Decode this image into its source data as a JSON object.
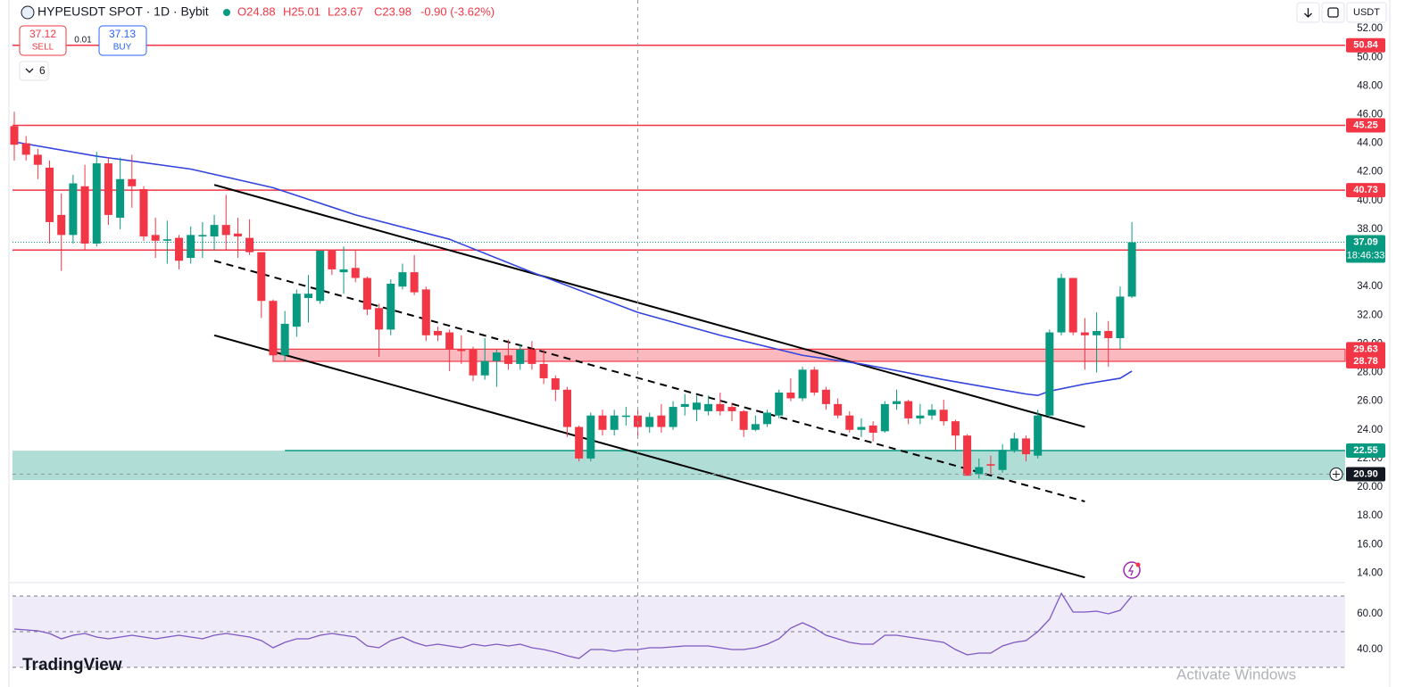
{
  "header": {
    "symbol": "HYPEUSDT SPOT · 1D · Bybit",
    "open": "O24.88",
    "high": "H25.01",
    "low": "L23.67",
    "close": "C23.98",
    "change": "-0.90 (-3.62%)"
  },
  "trade": {
    "sell_price": "37.12",
    "sell": "SELL",
    "spread": "0.01",
    "buy_price": "37.13",
    "buy": "BUY"
  },
  "indicators_count": "6",
  "toolbar": {
    "currency": "USDT"
  },
  "branding": "TradingView",
  "watermark": "Activate Windows",
  "chart_data": [
    {
      "type": "candlestick",
      "open": [
        45.2,
        44,
        43.2,
        42.3,
        39,
        37.6,
        41,
        37,
        42.6,
        38.8,
        41.5,
        40.8,
        37.6,
        37.2,
        37.4,
        36,
        37.5,
        37.5,
        38.3,
        37.7,
        37.4,
        36.4,
        33,
        29.2,
        31.2,
        33.2,
        33,
        36.5,
        35,
        35.3,
        34.6,
        32.5,
        31,
        34,
        35,
        33.8,
        30.9,
        30.8,
        29.6,
        29.6,
        27.8,
        28.8,
        29.2,
        28.6,
        29.6,
        28.6,
        27.6,
        26.8,
        24.2,
        22,
        25,
        24,
        24.9,
        25,
        24.2,
        25,
        24.2,
        25.6,
        25.4,
        25.3,
        25.8,
        25.6,
        25.3,
        24,
        24.4,
        25,
        26.6,
        26.2,
        28.2,
        26.8,
        25.8,
        25,
        24,
        24.3,
        23.9,
        25.8,
        26,
        24.8,
        25,
        25.4,
        24.6,
        23.6,
        20.9,
        21.6,
        21.2,
        22.6,
        23.4,
        22.2,
        25,
        30.8,
        34.6,
        30.8,
        30.6,
        30.9,
        30.4,
        33.3
      ],
      "high": [
        46.2,
        44.5,
        43.6,
        42.8,
        40.5,
        41.8,
        42.5,
        43.4,
        43,
        43,
        43.2,
        41,
        38.8,
        38.6,
        37.6,
        38.2,
        38.5,
        39,
        40.4,
        38.8,
        38.7,
        36.4,
        33.1,
        32.3,
        33.8,
        34.8,
        36.5,
        36.6,
        36.8,
        36.6,
        34.7,
        32.8,
        34.5,
        35.6,
        36.2,
        34,
        31.2,
        31,
        30.6,
        29.8,
        30.4,
        29.6,
        30.3,
        30,
        30.2,
        29.6,
        27.8,
        27,
        24.3,
        25.2,
        25.4,
        25.4,
        25.6,
        25.4,
        25.2,
        25.8,
        26,
        26.5,
        26.4,
        26.4,
        26.6,
        25.9,
        25.4,
        25,
        25.4,
        26.8,
        27.6,
        28.4,
        28.4,
        27,
        26.2,
        25.3,
        24.8,
        24.6,
        26,
        26.8,
        26.1,
        25.8,
        25.8,
        26.1,
        24.7,
        23.7,
        22,
        22.2,
        23,
        23.8,
        23.6,
        25.4,
        31,
        34.9,
        34.6,
        31.8,
        32.2,
        31.6,
        34,
        38.5
      ],
      "low": [
        42.8,
        42.8,
        41.5,
        37,
        35.1,
        37,
        36.5,
        36.8,
        38.3,
        38,
        39.5,
        37.2,
        36,
        35.6,
        35.2,
        35.6,
        36,
        36.5,
        36.5,
        36,
        36.2,
        31.8,
        28.8,
        28.8,
        30.5,
        31.5,
        32.8,
        34.8,
        33.5,
        34.3,
        32,
        29.1,
        30.6,
        33.8,
        33.4,
        30.2,
        30.2,
        28.1,
        28.6,
        27.4,
        27.5,
        27,
        28.2,
        28.2,
        28.2,
        27.2,
        26,
        23.5,
        21.8,
        21.8,
        23.6,
        23.6,
        24.3,
        23.4,
        23.8,
        23.8,
        24,
        25,
        24.6,
        25,
        25,
        24.6,
        23.5,
        23.9,
        24.2,
        24.8,
        26,
        26,
        26.4,
        25.4,
        24.8,
        23.8,
        23.5,
        23.2,
        23.8,
        25.4,
        24.4,
        24.4,
        24.7,
        24.3,
        22.6,
        20.8,
        20.6,
        20.9,
        21,
        22.4,
        21.8,
        22,
        24.8,
        30.6,
        30.6,
        28.2,
        28,
        28.4,
        29.6,
        33.2
      ],
      "close": [
        43.9,
        43.2,
        42.5,
        38.5,
        37.6,
        41.2,
        37,
        42.6,
        39,
        41.5,
        41,
        37.5,
        37.2,
        37.3,
        35.8,
        37.6,
        37.6,
        38.3,
        37.6,
        37.5,
        36.4,
        33,
        29.2,
        31.4,
        33.5,
        33.5,
        36.5,
        35.2,
        35.2,
        34.6,
        32.4,
        31,
        34.2,
        35,
        33.6,
        30.6,
        30.6,
        29.6,
        29.5,
        27.8,
        28.8,
        29.4,
        28.6,
        29.6,
        28.6,
        27.6,
        26.8,
        24.2,
        22,
        25,
        24,
        25,
        25,
        24.2,
        24.9,
        24.2,
        25.6,
        25.8,
        25.9,
        25.8,
        25.3,
        25.3,
        24,
        24.4,
        25.2,
        26.6,
        26.2,
        28.2,
        26.6,
        25.8,
        25,
        24,
        24.2,
        23.8,
        25.8,
        26,
        24.8,
        25,
        25.4,
        24.6,
        23.6,
        20.8,
        21.4,
        21.5,
        22.6,
        23.4,
        22.3,
        25,
        30.8,
        34.6,
        30.8,
        30.6,
        30.9,
        30.4,
        33.3,
        37.09
      ],
      "colors": {
        "up": "#089981",
        "down": "#f23645"
      },
      "ylim": [
        13.4,
        54
      ],
      "yticks": [
        {
          "value": 14,
          "label": "14.00"
        },
        {
          "value": 16,
          "label": "16.00"
        },
        {
          "value": 18,
          "label": "18.00"
        },
        {
          "value": 20,
          "label": "20.00"
        },
        {
          "value": 22,
          "label": "22.00"
        },
        {
          "value": 24,
          "label": "24.00"
        },
        {
          "value": 26,
          "label": "26.00"
        },
        {
          "value": 28,
          "label": "28.00"
        },
        {
          "value": 30,
          "label": "30.00"
        },
        {
          "value": 32,
          "label": "32.00"
        },
        {
          "value": 34,
          "label": "34.00"
        },
        {
          "value": 36,
          "label": "36.00"
        },
        {
          "value": 38,
          "label": "38.00"
        },
        {
          "value": 40,
          "label": "40.00"
        },
        {
          "value": 42,
          "label": "42.00"
        },
        {
          "value": 44,
          "label": "44.00"
        },
        {
          "value": 46,
          "label": "46.00"
        },
        {
          "value": 48,
          "label": "48.00"
        },
        {
          "value": 50,
          "label": "50.00"
        },
        {
          "value": 52,
          "label": "52.00"
        }
      ],
      "moving_average": {
        "color": "#3344dd",
        "x": [
          0,
          7,
          15,
          22,
          29,
          37,
          44,
          53,
          60,
          67,
          72,
          79,
          86,
          87,
          88,
          91,
          94,
          95
        ],
        "values": [
          44.1,
          43.1,
          42.2,
          40.9,
          39,
          37.3,
          35,
          32.2,
          30.6,
          29.2,
          28.6,
          27.5,
          26.5,
          26.4,
          26.7,
          27.2,
          27.6,
          28.1
        ]
      },
      "levels": [
        50.84,
        45.25,
        40.73
      ],
      "level_color": "#f23645",
      "unlabeled_levels": [
        36.55
      ],
      "resistance_zone": {
        "from": 28.78,
        "to": 29.63,
        "x_start": 22,
        "color": "#f23645"
      },
      "support_zone": {
        "from": 20.5,
        "to": 22.55,
        "x_start": 23,
        "color": "#089981"
      },
      "trendlines": [
        {
          "x": [
            17,
            91
          ],
          "values": [
            41.1,
            24.2
          ],
          "style": "solid"
        },
        {
          "x": [
            17,
            91
          ],
          "values": [
            35.8,
            19.0
          ],
          "style": "dashed"
        },
        {
          "x": [
            17,
            91
          ],
          "values": [
            30.6,
            13.7
          ],
          "style": "solid"
        }
      ],
      "last_price": 37.09,
      "countdown": "18:46:33",
      "crosshair": {
        "x": 53,
        "price": {
          "value": 20.9,
          "label": "20.90"
        }
      }
    },
    {
      "type": "line",
      "values": [
        51.5,
        51,
        50.5,
        49,
        46,
        48,
        49,
        47,
        46,
        47,
        48,
        47,
        46,
        47,
        48,
        47,
        46,
        48,
        49,
        48,
        47,
        45,
        41,
        44,
        46,
        46,
        48,
        49,
        48,
        47,
        42,
        41,
        45,
        47,
        44,
        42,
        43,
        42,
        41,
        43,
        42,
        43,
        42,
        43,
        41,
        40,
        38.5,
        36.5,
        35,
        40,
        40,
        39,
        40,
        40,
        41,
        41,
        41.5,
        42,
        42,
        42,
        41,
        40,
        40,
        41,
        43,
        46,
        52,
        55,
        52,
        48,
        46,
        44,
        43,
        43,
        48,
        48,
        47,
        46,
        45,
        44,
        40,
        37,
        38,
        38,
        42,
        44,
        45,
        50,
        57,
        71.5,
        61,
        61,
        61.5,
        60,
        62,
        70
      ],
      "color": "#7e57c2",
      "ylim": [
        24,
        76.5
      ],
      "yticks": [
        {
          "value": 40,
          "label": "40.00"
        },
        {
          "value": 60,
          "label": "60.00"
        }
      ],
      "band": [
        30,
        70
      ],
      "band_lines": [
        30,
        50,
        70
      ]
    }
  ]
}
